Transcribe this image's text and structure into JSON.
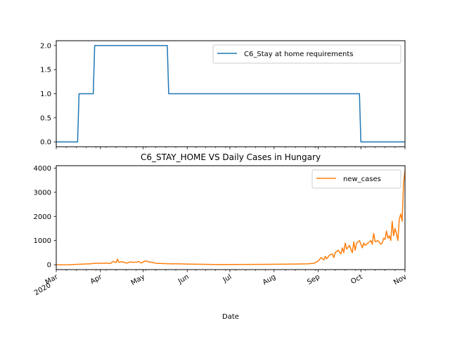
{
  "chart_data": [
    {
      "type": "line",
      "title": "",
      "xlabel": "",
      "ylabel": "",
      "xlim": [
        "2020-03-01",
        "2020-11-01"
      ],
      "ylim": [
        -0.1,
        2.1
      ],
      "yticks": [
        0.0,
        0.5,
        1.0,
        1.5,
        2.0
      ],
      "ytick_labels": [
        "0.0",
        "0.5",
        "1.0",
        "1.5",
        "2.0"
      ],
      "grid": false,
      "legend_position": "top-right",
      "series": [
        {
          "name": "C6_Stay at home requirements",
          "color": "#1f77b4",
          "x": [
            "2020-03-01",
            "2020-03-16",
            "2020-03-17",
            "2020-03-27",
            "2020-03-28",
            "2020-05-18",
            "2020-05-19",
            "2020-09-30",
            "2020-10-01",
            "2020-11-01"
          ],
          "y": [
            0,
            0,
            1,
            1,
            2,
            2,
            1,
            1,
            0,
            0
          ]
        }
      ]
    },
    {
      "type": "line",
      "title": "C6_STAY_HOME VS Daily Cases in Hungary",
      "xlabel": "Date",
      "ylabel": "",
      "xlim": [
        "2020-03-01",
        "2020-11-01"
      ],
      "ylim": [
        -200,
        4100
      ],
      "yticks": [
        0,
        1000,
        2000,
        3000,
        4000
      ],
      "ytick_labels": [
        "0",
        "1000",
        "2000",
        "3000",
        "4000"
      ],
      "xtick_dates": [
        "2020-03-01",
        "2020-04-01",
        "2020-05-01",
        "2020-06-01",
        "2020-07-01",
        "2020-08-01",
        "2020-09-01",
        "2020-10-01",
        "2020-11-01"
      ],
      "xtick_labels": [
        [
          "Mar",
          "2020"
        ],
        [
          "Apr"
        ],
        [
          "May"
        ],
        [
          "Jun"
        ],
        [
          "Jul"
        ],
        [
          "Aug"
        ],
        [
          "Sep"
        ],
        [
          "Oct"
        ],
        [
          "Nov"
        ]
      ],
      "grid": false,
      "legend_position": "top-right",
      "series": [
        {
          "name": "new_cases",
          "color": "#ff7f0e",
          "x": [
            "2020-03-01",
            "2020-03-10",
            "2020-03-20",
            "2020-03-25",
            "2020-03-28",
            "2020-04-01",
            "2020-04-05",
            "2020-04-08",
            "2020-04-10",
            "2020-04-12",
            "2020-04-13",
            "2020-04-14",
            "2020-04-16",
            "2020-04-18",
            "2020-04-20",
            "2020-04-22",
            "2020-04-24",
            "2020-04-26",
            "2020-04-28",
            "2020-04-30",
            "2020-05-01",
            "2020-05-03",
            "2020-05-05",
            "2020-05-08",
            "2020-05-10",
            "2020-05-15",
            "2020-05-20",
            "2020-05-25",
            "2020-06-01",
            "2020-06-10",
            "2020-06-20",
            "2020-07-01",
            "2020-07-15",
            "2020-08-01",
            "2020-08-15",
            "2020-08-25",
            "2020-08-29",
            "2020-09-01",
            "2020-09-03",
            "2020-09-05",
            "2020-09-06",
            "2020-09-07",
            "2020-09-09",
            "2020-09-11",
            "2020-09-12",
            "2020-09-13",
            "2020-09-15",
            "2020-09-17",
            "2020-09-18",
            "2020-09-19",
            "2020-09-20",
            "2020-09-21",
            "2020-09-23",
            "2020-09-25",
            "2020-09-26",
            "2020-09-27",
            "2020-09-28",
            "2020-09-30",
            "2020-10-02",
            "2020-10-03",
            "2020-10-04",
            "2020-10-06",
            "2020-10-08",
            "2020-10-09",
            "2020-10-10",
            "2020-10-11",
            "2020-10-13",
            "2020-10-15",
            "2020-10-16",
            "2020-10-17",
            "2020-10-18",
            "2020-10-19",
            "2020-10-20",
            "2020-10-21",
            "2020-10-22",
            "2020-10-23",
            "2020-10-24",
            "2020-10-25",
            "2020-10-26",
            "2020-10-27",
            "2020-10-28",
            "2020-10-29",
            "2020-10-30",
            "2020-10-31",
            "2020-11-01"
          ],
          "y": [
            0,
            5,
            30,
            40,
            60,
            60,
            70,
            50,
            140,
            90,
            230,
            100,
            130,
            90,
            70,
            120,
            100,
            110,
            130,
            70,
            120,
            160,
            120,
            90,
            60,
            50,
            40,
            40,
            30,
            20,
            10,
            10,
            15,
            20,
            30,
            40,
            60,
            150,
            300,
            200,
            350,
            250,
            400,
            450,
            300,
            500,
            600,
            450,
            700,
            500,
            900,
            650,
            800,
            500,
            950,
            600,
            900,
            1000,
            700,
            900,
            800,
            900,
            1000,
            850,
            1300,
            950,
            1000,
            850,
            900,
            1100,
            1050,
            1400,
            1100,
            1200,
            1000,
            1800,
            1200,
            1500,
            1300,
            1000,
            1900,
            2100,
            1800,
            3400,
            3900
          ]
        }
      ]
    }
  ]
}
